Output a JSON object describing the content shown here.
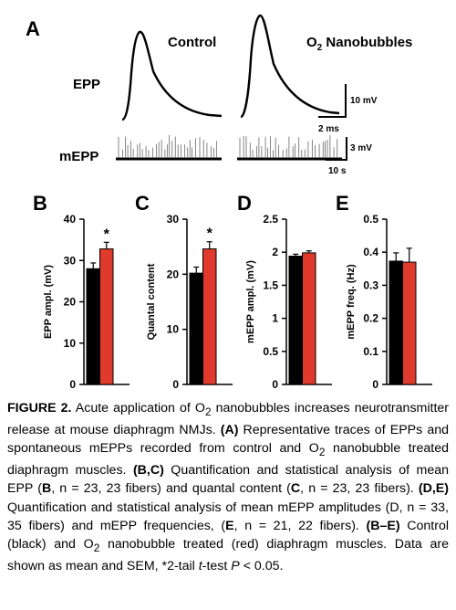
{
  "panel_a": {
    "letter": "A",
    "control_label": "Control",
    "treatment_label_main": "O",
    "treatment_label_sub": "2",
    "treatment_label_rest": " Nanobubbles",
    "epp_label": "EPP",
    "mepp_label": "mEPP",
    "epp_scale_v": "10 mV",
    "epp_scale_t": "2 ms",
    "mepp_scale_v": "3 mV",
    "mepp_scale_t": "10 s"
  },
  "colors": {
    "control": "#000000",
    "o2": "#e03a2c"
  },
  "chart_data": [
    {
      "type": "bar",
      "letter": "B",
      "categories": [
        "Control",
        "O2 nanobubbles"
      ],
      "values": [
        28.0,
        32.8
      ],
      "errors": [
        1.4,
        1.6
      ],
      "ylabel": "EPP ampl. (mV)",
      "ylim": [
        0,
        40
      ],
      "ticks": [
        0,
        10,
        20,
        30,
        40
      ],
      "tick_labels": [
        "0",
        "10",
        "20",
        "30",
        "40"
      ],
      "significance": "*"
    },
    {
      "type": "bar",
      "letter": "C",
      "categories": [
        "Control",
        "O2 nanobubbles"
      ],
      "values": [
        20.2,
        24.6
      ],
      "errors": [
        1.1,
        1.3
      ],
      "ylabel": "Quantal content",
      "ylim": [
        0,
        30
      ],
      "ticks": [
        0,
        10,
        20,
        30
      ],
      "tick_labels": [
        "0",
        "10",
        "20",
        "30"
      ],
      "significance": "*"
    },
    {
      "type": "bar",
      "letter": "D",
      "categories": [
        "Control",
        "O2 nanobubbles"
      ],
      "values": [
        1.94,
        1.99
      ],
      "errors": [
        0.03,
        0.03
      ],
      "ylabel": "mEPP ampl. (mV)",
      "ylim": [
        0,
        2.5
      ],
      "ticks": [
        0,
        0.5,
        1,
        1.5,
        2,
        2.5
      ],
      "tick_labels": [
        "0",
        "0.5",
        "1",
        "1.5",
        "2",
        "2.5"
      ],
      "significance": ""
    },
    {
      "type": "bar",
      "letter": "E",
      "categories": [
        "Control",
        "O2 nanobubbles"
      ],
      "values": [
        0.373,
        0.37
      ],
      "errors": [
        0.025,
        0.042
      ],
      "ylabel": "mEPP freq. (Hz)",
      "ylim": [
        0,
        0.5
      ],
      "ticks": [
        0,
        0.1,
        0.2,
        0.3,
        0.4,
        0.5
      ],
      "tick_labels": [
        "0",
        "0.1",
        "0.2",
        "0.3",
        "0.4",
        "0.5"
      ],
      "significance": ""
    }
  ],
  "caption": {
    "heading": "FIGURE 2.",
    "s1": " Acute application of O",
    "s1_sub": "2",
    "s2": " nanobubbles increases neurotransmitter release at mouse diaphragm NMJs. ",
    "a_label": "(A)",
    "s3": " Representative traces of EPPs and spontaneous mEPPs recorded from control and O",
    "s3_sub": "2",
    "s4": " nanobubble treated diaphragm muscles. ",
    "bc_label": "(B,C)",
    "s5": " Quantification and statistical analysis of mean EPP (",
    "b_ref": "B",
    "n_b": ", n = 23, 23 fibers) and quantal content (",
    "c_ref": "C",
    "n_c": ", n = 23, 23 fibers). ",
    "de_label": "(D,E)",
    "s6": " Quantification and statistical analysis of mean mEPP amplitudes (D, n = 33, 35 fibers) and mEPP frequencies, (",
    "e_ref": "E",
    "n_e": ", n = 21, 22 fibers). ",
    "be_label": "(B–E)",
    "s7": " Control (black) and O",
    "s7_sub": "2",
    "s8": " nanobubble treated (red) diaphragm muscles. Data are shown as mean and SEM, *2-tail ",
    "t_italic": "t",
    "s9": "-test ",
    "p_italic": "P",
    "s10": " < 0.05."
  }
}
